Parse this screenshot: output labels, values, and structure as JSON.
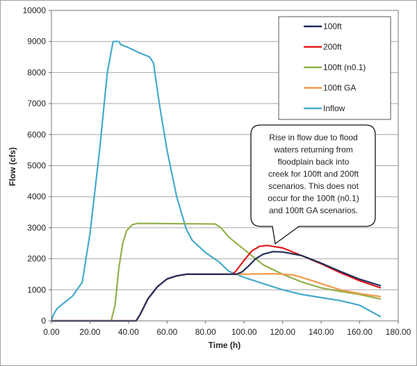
{
  "chart_data": {
    "type": "line",
    "title": "",
    "xlabel": "Time (h)",
    "ylabel": "Flow (cfs)",
    "xlim": [
      0,
      180
    ],
    "ylim": [
      0,
      10000
    ],
    "xticks": [
      "0.00",
      "20.00",
      "40.00",
      "60.00",
      "80.00",
      "100.00",
      "120.00",
      "140.00",
      "160.00",
      "180.00"
    ],
    "yticks": [
      "0",
      "1000",
      "2000",
      "3000",
      "4000",
      "5000",
      "6000",
      "7000",
      "8000",
      "9000",
      "10000"
    ],
    "grid": "horizontal",
    "legend_position": "top-right",
    "series": [
      {
        "name": "100ft",
        "color": "#1f2d5a",
        "points": [
          [
            0,
            0
          ],
          [
            44,
            0
          ],
          [
            46,
            200
          ],
          [
            50,
            700
          ],
          [
            55,
            1100
          ],
          [
            60,
            1350
          ],
          [
            65,
            1450
          ],
          [
            70,
            1500
          ],
          [
            96,
            1500
          ],
          [
            99,
            1580
          ],
          [
            102,
            1750
          ],
          [
            106,
            2000
          ],
          [
            110,
            2150
          ],
          [
            115,
            2230
          ],
          [
            120,
            2220
          ],
          [
            130,
            2100
          ],
          [
            140,
            1860
          ],
          [
            150,
            1590
          ],
          [
            160,
            1340
          ],
          [
            171,
            1130
          ]
        ]
      },
      {
        "name": "200ft",
        "color": "#e01a1a",
        "points": [
          [
            0,
            0
          ],
          [
            44,
            0
          ],
          [
            46,
            200
          ],
          [
            50,
            700
          ],
          [
            55,
            1100
          ],
          [
            60,
            1350
          ],
          [
            65,
            1450
          ],
          [
            70,
            1500
          ],
          [
            94,
            1500
          ],
          [
            96,
            1620
          ],
          [
            100,
            1950
          ],
          [
            104,
            2250
          ],
          [
            108,
            2400
          ],
          [
            112,
            2430
          ],
          [
            120,
            2350
          ],
          [
            130,
            2100
          ],
          [
            140,
            1840
          ],
          [
            150,
            1550
          ],
          [
            160,
            1290
          ],
          [
            171,
            1060
          ]
        ]
      },
      {
        "name": "100ft (n0.1)",
        "color": "#92b04a",
        "points": [
          [
            0,
            0
          ],
          [
            31,
            0
          ],
          [
            33,
            500
          ],
          [
            35,
            1700
          ],
          [
            37,
            2500
          ],
          [
            39,
            2900
          ],
          [
            42,
            3100
          ],
          [
            45,
            3140
          ],
          [
            85,
            3120
          ],
          [
            88,
            3000
          ],
          [
            92,
            2700
          ],
          [
            100,
            2300
          ],
          [
            110,
            1800
          ],
          [
            120,
            1500
          ],
          [
            130,
            1250
          ],
          [
            140,
            1060
          ],
          [
            150,
            950
          ],
          [
            160,
            850
          ],
          [
            171,
            700
          ]
        ]
      },
      {
        "name": "100ft GA",
        "color": "#f39a4a",
        "points": [
          [
            0,
            0
          ],
          [
            44,
            0
          ],
          [
            46,
            200
          ],
          [
            50,
            700
          ],
          [
            55,
            1100
          ],
          [
            60,
            1350
          ],
          [
            65,
            1450
          ],
          [
            70,
            1500
          ],
          [
            95,
            1500
          ],
          [
            115,
            1520
          ],
          [
            125,
            1480
          ],
          [
            130,
            1400
          ],
          [
            140,
            1200
          ],
          [
            150,
            1000
          ],
          [
            160,
            880
          ],
          [
            171,
            780
          ]
        ]
      },
      {
        "name": "Inflow",
        "color": "#44aacb",
        "points": [
          [
            0,
            0
          ],
          [
            1,
            200
          ],
          [
            3,
            400
          ],
          [
            6,
            550
          ],
          [
            11,
            800
          ],
          [
            16,
            1250
          ],
          [
            20,
            2800
          ],
          [
            25,
            5500
          ],
          [
            29,
            8000
          ],
          [
            32,
            9000
          ],
          [
            35,
            9000
          ],
          [
            36,
            8900
          ],
          [
            40,
            8800
          ],
          [
            45,
            8650
          ],
          [
            51,
            8500
          ],
          [
            53,
            8300
          ],
          [
            56,
            7000
          ],
          [
            60,
            5500
          ],
          [
            65,
            4000
          ],
          [
            70,
            2950
          ],
          [
            73,
            2600
          ],
          [
            80,
            2200
          ],
          [
            87,
            1900
          ],
          [
            92,
            1600
          ],
          [
            96,
            1500
          ],
          [
            100,
            1400
          ],
          [
            110,
            1200
          ],
          [
            120,
            1000
          ],
          [
            130,
            850
          ],
          [
            140,
            750
          ],
          [
            150,
            650
          ],
          [
            160,
            500
          ],
          [
            171,
            130
          ]
        ]
      }
    ],
    "annotations": [
      {
        "text_lines": [
          "Rise in flow due to flood",
          "waters returning  from",
          "floodplain back into",
          "creek for 100ft and  200ft",
          "scenarios.  This does not",
          "occur for the 100ft (n0.1)",
          "and 100ft GA scenarios."
        ],
        "points_to": [
          116,
          2480
        ]
      }
    ]
  }
}
